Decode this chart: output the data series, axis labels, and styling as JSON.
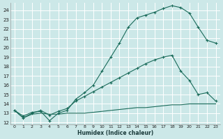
{
  "xlabel": "Humidex (Indice chaleur)",
  "bg_color": "#cce8e8",
  "grid_color": "#b8d8d8",
  "line_color": "#1a6b5a",
  "xlim": [
    -0.5,
    23.5
  ],
  "ylim": [
    11.8,
    24.8
  ],
  "yticks": [
    12,
    13,
    14,
    15,
    16,
    17,
    18,
    19,
    20,
    21,
    22,
    23,
    24
  ],
  "xticks": [
    0,
    1,
    2,
    3,
    4,
    5,
    6,
    7,
    8,
    9,
    10,
    11,
    12,
    13,
    14,
    15,
    16,
    17,
    18,
    19,
    20,
    21,
    22,
    23
  ],
  "line1_x": [
    0,
    1,
    2,
    3,
    4,
    5,
    6,
    7,
    8,
    9,
    10,
    11,
    12,
    13,
    14,
    15,
    16,
    17,
    18,
    19,
    20,
    21,
    22,
    23
  ],
  "line1_y": [
    13.3,
    12.7,
    13.1,
    13.2,
    12.2,
    13.0,
    13.3,
    14.5,
    15.2,
    16.0,
    17.5,
    19.0,
    20.5,
    22.2,
    23.2,
    23.5,
    23.8,
    24.2,
    24.5,
    24.3,
    23.7,
    22.2,
    20.8,
    20.5
  ],
  "line2_x": [
    0,
    1,
    2,
    3,
    4,
    5,
    6,
    7,
    8,
    9,
    10,
    11,
    12,
    13,
    14,
    15,
    16,
    17,
    18,
    19,
    20,
    21,
    22,
    23
  ],
  "line2_y": [
    13.3,
    12.5,
    13.0,
    13.3,
    12.8,
    13.2,
    13.5,
    14.3,
    14.8,
    15.3,
    15.8,
    16.3,
    16.8,
    17.3,
    17.8,
    18.3,
    18.7,
    19.0,
    19.2,
    17.5,
    16.5,
    15.0,
    15.2,
    14.3
  ],
  "line3_x": [
    0,
    1,
    2,
    3,
    4,
    5,
    6,
    7,
    8,
    9,
    10,
    11,
    12,
    13,
    14,
    15,
    16,
    17,
    18,
    19,
    20,
    21,
    22,
    23
  ],
  "line3_y": [
    13.3,
    12.5,
    12.9,
    13.0,
    12.9,
    12.9,
    13.0,
    13.0,
    13.0,
    13.1,
    13.2,
    13.3,
    13.4,
    13.5,
    13.6,
    13.6,
    13.7,
    13.8,
    13.9,
    13.9,
    14.0,
    14.0,
    14.0,
    14.0
  ]
}
